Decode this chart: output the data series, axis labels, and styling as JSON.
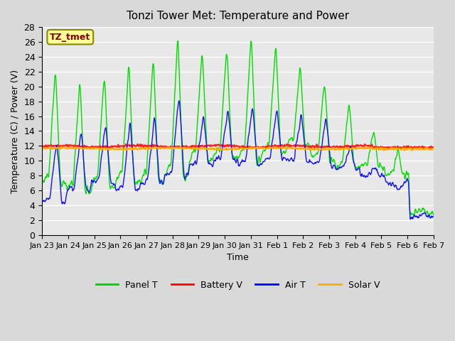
{
  "title": "Tonzi Tower Met: Temperature and Power",
  "xlabel": "Time",
  "ylabel": "Temperature (C) / Power (V)",
  "ylim": [
    0,
    28
  ],
  "yticks": [
    0,
    2,
    4,
    6,
    8,
    10,
    12,
    14,
    16,
    18,
    20,
    22,
    24,
    26,
    28
  ],
  "xtick_labels": [
    "Jan 23",
    "Jan 24",
    "Jan 25",
    "Jan 26",
    "Jan 27",
    "Jan 28",
    "Jan 29",
    "Jan 30",
    "Jan 31",
    "Feb 1",
    "Feb 2",
    "Feb 3",
    "Feb 4",
    "Feb 5",
    "Feb 6",
    "Feb 7"
  ],
  "legend_entries": [
    "Panel T",
    "Battery V",
    "Air T",
    "Solar V"
  ],
  "legend_colors": [
    "#00cc00",
    "#ff0000",
    "#0000ff",
    "#ffaa00"
  ],
  "annotation_text": "TZ_tmet",
  "annotation_bg": "#ffff99",
  "annotation_fg": "#880000",
  "bg_color": "#e8e8e8",
  "plot_bg_color": "#e8e8e8",
  "grid_color": "#ffffff",
  "panel_color": "#00dd00",
  "battery_color": "#ff2222",
  "air_color": "#1111ff",
  "solar_color": "#ffaa00"
}
